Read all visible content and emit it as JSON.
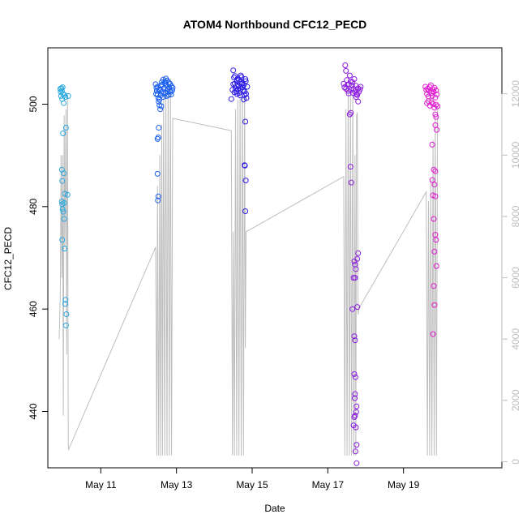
{
  "chart_data": {
    "type": "scatter",
    "title": "ATOM4 Northbound CFC12_PECD",
    "xlabel": "Date",
    "ylabel": "CFC12_PECD",
    "x_unit": "days (May)",
    "xlim": [
      9.6,
      21.6
    ],
    "ylim": [
      429,
      511
    ],
    "y2lim": [
      -200,
      13500
    ],
    "grid": false,
    "x_ticks": [
      {
        "value": 11,
        "label": "May 11"
      },
      {
        "value": 13,
        "label": "May 13"
      },
      {
        "value": 15,
        "label": "May 15"
      },
      {
        "value": 17,
        "label": "May 17"
      },
      {
        "value": 19,
        "label": "May 19"
      }
    ],
    "y_ticks": [
      440,
      460,
      480,
      500
    ],
    "y2_ticks": [
      0,
      2000,
      4000,
      6000,
      8000,
      10000,
      12000
    ],
    "series": [
      {
        "kind": "points",
        "color": "#29a8e0",
        "points": [
          [
            9.93,
            503.0
          ],
          [
            9.94,
            502.4
          ],
          [
            9.95,
            501.6
          ],
          [
            9.96,
            503.1
          ],
          [
            9.97,
            502.6
          ],
          [
            9.98,
            501.0
          ],
          [
            9.99,
            503.3
          ],
          [
            10.0,
            502.0
          ],
          [
            10.02,
            500.2
          ],
          [
            10.04,
            501.8
          ],
          [
            10.06,
            501.4
          ],
          [
            10.14,
            501.6
          ],
          [
            9.97,
            487.2
          ],
          [
            10.02,
            486.5
          ],
          [
            9.98,
            485.0
          ],
          [
            10.05,
            482.5
          ],
          [
            10.12,
            482.3
          ],
          [
            9.97,
            481.0
          ],
          [
            9.98,
            480.5
          ],
          [
            10.03,
            480.7
          ],
          [
            9.99,
            479.5
          ],
          [
            10.01,
            479.0
          ],
          [
            10.03,
            477.6
          ],
          [
            10.08,
            495.4
          ],
          [
            10.0,
            494.3
          ],
          [
            9.98,
            473.5
          ],
          [
            10.04,
            471.8
          ],
          [
            10.07,
            461.8
          ],
          [
            10.06,
            461.0
          ],
          [
            10.09,
            459.0
          ],
          [
            10.08,
            456.8
          ]
        ]
      },
      {
        "kind": "points",
        "color": "#1a5ef0",
        "points": [
          [
            12.45,
            503.9
          ],
          [
            12.47,
            503.2
          ],
          [
            12.48,
            502.6
          ],
          [
            12.5,
            501.9
          ],
          [
            12.52,
            501.2
          ],
          [
            12.53,
            500.5
          ],
          [
            12.55,
            499.8
          ],
          [
            12.57,
            502.8
          ],
          [
            12.59,
            503.6
          ],
          [
            12.61,
            504.3
          ],
          [
            12.63,
            502.5
          ],
          [
            12.65,
            501.4
          ],
          [
            12.67,
            503.1
          ],
          [
            12.69,
            504.1
          ],
          [
            12.71,
            502.2
          ],
          [
            12.73,
            503.7
          ],
          [
            12.75,
            504.6
          ],
          [
            12.77,
            502.9
          ],
          [
            12.79,
            501.8
          ],
          [
            12.81,
            503.3
          ],
          [
            12.83,
            504.0
          ],
          [
            12.85,
            502.4
          ],
          [
            12.87,
            503.5
          ],
          [
            12.89,
            502.7
          ],
          [
            12.46,
            502.0
          ],
          [
            12.5,
            503.4
          ],
          [
            12.54,
            502.9
          ],
          [
            12.58,
            501.7
          ],
          [
            12.62,
            503.8
          ],
          [
            12.66,
            502.1
          ],
          [
            12.7,
            504.4
          ],
          [
            12.74,
            501.6
          ],
          [
            12.78,
            503.0
          ],
          [
            12.82,
            502.6
          ],
          [
            12.86,
            501.9
          ],
          [
            12.9,
            503.2
          ],
          [
            12.55,
            500.9
          ],
          [
            12.6,
            499.6
          ],
          [
            12.57,
            499.0
          ],
          [
            12.65,
            504.8
          ],
          [
            12.72,
            505.0
          ],
          [
            12.8,
            504.2
          ],
          [
            12.53,
            495.4
          ],
          [
            12.5,
            493.2
          ],
          [
            12.52,
            493.5
          ],
          [
            12.5,
            486.4
          ],
          [
            12.52,
            482.0
          ],
          [
            12.51,
            481.2
          ]
        ]
      },
      {
        "kind": "points",
        "color": "#2b1ae8",
        "points": [
          [
            14.48,
            502.8
          ],
          [
            14.5,
            503.9
          ],
          [
            14.52,
            505.2
          ],
          [
            14.54,
            504.0
          ],
          [
            14.56,
            503.1
          ],
          [
            14.58,
            502.5
          ],
          [
            14.6,
            504.6
          ],
          [
            14.62,
            505.0
          ],
          [
            14.64,
            503.5
          ],
          [
            14.66,
            502.2
          ],
          [
            14.68,
            504.3
          ],
          [
            14.7,
            503.0
          ],
          [
            14.72,
            505.3
          ],
          [
            14.74,
            504.1
          ],
          [
            14.76,
            502.7
          ],
          [
            14.78,
            503.8
          ],
          [
            14.8,
            501.8
          ],
          [
            14.82,
            504.9
          ],
          [
            14.84,
            502.0
          ],
          [
            14.5,
            506.6
          ],
          [
            14.55,
            505.5
          ],
          [
            14.6,
            502.0
          ],
          [
            14.65,
            504.8
          ],
          [
            14.7,
            505.6
          ],
          [
            14.75,
            503.3
          ],
          [
            14.8,
            502.5
          ],
          [
            14.85,
            501.2
          ],
          [
            14.45,
            501.0
          ],
          [
            14.58,
            503.6
          ],
          [
            14.68,
            501.7
          ],
          [
            14.78,
            500.9
          ],
          [
            14.83,
            504.5
          ],
          [
            14.62,
            502.9
          ],
          [
            14.72,
            503.9
          ],
          [
            14.53,
            502.3
          ],
          [
            14.87,
            503.4
          ],
          [
            14.82,
            496.6
          ],
          [
            14.8,
            488.1
          ],
          [
            14.81,
            488.0
          ],
          [
            14.83,
            485.1
          ],
          [
            14.82,
            479.1
          ]
        ]
      },
      {
        "kind": "points",
        "color": "#8a1ae0",
        "points": [
          [
            17.42,
            504.0
          ],
          [
            17.44,
            503.3
          ],
          [
            17.46,
            507.6
          ],
          [
            17.48,
            506.5
          ],
          [
            17.5,
            504.7
          ],
          [
            17.52,
            503.8
          ],
          [
            17.54,
            502.6
          ],
          [
            17.56,
            503.9
          ],
          [
            17.58,
            505.6
          ],
          [
            17.6,
            504.4
          ],
          [
            17.62,
            502.8
          ],
          [
            17.64,
            503.7
          ],
          [
            17.66,
            502.2
          ],
          [
            17.68,
            503.0
          ],
          [
            17.7,
            504.9
          ],
          [
            17.72,
            502.5
          ],
          [
            17.74,
            503.6
          ],
          [
            17.76,
            502.0
          ],
          [
            17.78,
            501.8
          ],
          [
            17.8,
            503.1
          ],
          [
            17.82,
            502.4
          ],
          [
            17.48,
            503.0
          ],
          [
            17.55,
            502.1
          ],
          [
            17.65,
            504.3
          ],
          [
            17.75,
            501.4
          ],
          [
            17.85,
            502.9
          ],
          [
            17.87,
            503.4
          ],
          [
            17.8,
            500.5
          ],
          [
            17.61,
            498.3
          ],
          [
            17.58,
            498.0
          ],
          [
            17.6,
            487.8
          ],
          [
            17.62,
            484.7
          ],
          [
            17.8,
            470.9
          ],
          [
            17.78,
            469.8
          ],
          [
            17.7,
            469.3
          ],
          [
            17.72,
            468.7
          ],
          [
            17.74,
            467.8
          ],
          [
            17.68,
            466.1
          ],
          [
            17.72,
            466.1
          ],
          [
            17.78,
            460.4
          ],
          [
            17.65,
            460.0
          ],
          [
            17.7,
            454.7
          ],
          [
            17.72,
            453.9
          ],
          [
            17.7,
            447.3
          ],
          [
            17.73,
            446.7
          ],
          [
            17.72,
            443.4
          ],
          [
            17.71,
            442.6
          ],
          [
            17.76,
            441.0
          ],
          [
            17.75,
            439.9
          ],
          [
            17.72,
            439.2
          ],
          [
            17.7,
            438.9
          ],
          [
            17.68,
            437.3
          ],
          [
            17.74,
            436.9
          ],
          [
            17.76,
            433.5
          ],
          [
            17.73,
            432.2
          ],
          [
            17.76,
            429.9
          ]
        ]
      },
      {
        "kind": "points",
        "color": "#e01ad0",
        "points": [
          [
            19.58,
            503.4
          ],
          [
            19.6,
            502.8
          ],
          [
            19.62,
            502.0
          ],
          [
            19.64,
            503.0
          ],
          [
            19.66,
            501.5
          ],
          [
            19.68,
            502.6
          ],
          [
            19.7,
            503.3
          ],
          [
            19.72,
            503.7
          ],
          [
            19.74,
            502.2
          ],
          [
            19.76,
            501.6
          ],
          [
            19.78,
            502.9
          ],
          [
            19.8,
            502.4
          ],
          [
            19.82,
            503.2
          ],
          [
            19.84,
            501.3
          ],
          [
            19.86,
            502.7
          ],
          [
            19.88,
            501.9
          ],
          [
            19.62,
            500.2
          ],
          [
            19.66,
            500.6
          ],
          [
            19.7,
            499.7
          ],
          [
            19.74,
            500.4
          ],
          [
            19.78,
            500.0
          ],
          [
            19.82,
            499.3
          ],
          [
            19.86,
            499.9
          ],
          [
            19.9,
            499.6
          ],
          [
            19.84,
            498.0
          ],
          [
            19.86,
            497.5
          ],
          [
            19.84,
            495.9
          ],
          [
            19.88,
            495.0
          ],
          [
            19.76,
            492.1
          ],
          [
            19.8,
            487.2
          ],
          [
            19.84,
            486.9
          ],
          [
            19.76,
            485.2
          ],
          [
            19.82,
            484.3
          ],
          [
            19.78,
            482.2
          ],
          [
            19.84,
            482.0
          ],
          [
            19.8,
            477.6
          ],
          [
            19.84,
            474.5
          ],
          [
            19.86,
            473.5
          ],
          [
            19.82,
            471.2
          ],
          [
            19.87,
            468.4
          ],
          [
            19.8,
            464.5
          ],
          [
            19.82,
            460.8
          ],
          [
            19.78,
            455.1
          ]
        ]
      },
      {
        "kind": "line",
        "axis": "right",
        "color": "#bebebe",
        "points": [
          [
            9.9,
            4000
          ],
          [
            9.93,
            5500
          ],
          [
            9.95,
            10000
          ],
          [
            9.97,
            6000
          ],
          [
            9.99,
            10000
          ],
          [
            10.01,
            1500
          ],
          [
            10.03,
            11300
          ],
          [
            10.05,
            7000
          ],
          [
            10.08,
            11500
          ],
          [
            10.1,
            3500
          ],
          [
            10.12,
            12000
          ],
          [
            10.14,
            500
          ],
          [
            10.15,
            400
          ],
          [
            12.45,
            7000
          ],
          [
            12.48,
            200
          ],
          [
            12.5,
            9000
          ],
          [
            12.53,
            200
          ],
          [
            12.56,
            10000
          ],
          [
            12.58,
            200
          ],
          [
            12.61,
            11000
          ],
          [
            12.63,
            200
          ],
          [
            12.66,
            12000
          ],
          [
            12.69,
            200
          ],
          [
            12.72,
            12200
          ],
          [
            12.75,
            200
          ],
          [
            12.78,
            12400
          ],
          [
            12.81,
            200
          ],
          [
            12.84,
            12500
          ],
          [
            12.87,
            200
          ],
          [
            12.9,
            11200
          ],
          [
            14.45,
            10800
          ],
          [
            14.48,
            200
          ],
          [
            14.5,
            7500
          ],
          [
            14.53,
            200
          ],
          [
            14.56,
            11500
          ],
          [
            14.59,
            200
          ],
          [
            14.62,
            11800
          ],
          [
            14.65,
            200
          ],
          [
            14.68,
            12300
          ],
          [
            14.71,
            200
          ],
          [
            14.74,
            12500
          ],
          [
            14.77,
            200
          ],
          [
            14.8,
            12400
          ],
          [
            14.82,
            3700
          ],
          [
            14.84,
            7500
          ],
          [
            17.42,
            9300
          ],
          [
            17.45,
            200
          ],
          [
            17.48,
            11500
          ],
          [
            17.51,
            200
          ],
          [
            17.54,
            12300
          ],
          [
            17.57,
            200
          ],
          [
            17.6,
            12000
          ],
          [
            17.63,
            200
          ],
          [
            17.66,
            12200
          ],
          [
            17.69,
            200
          ],
          [
            17.72,
            10000
          ],
          [
            17.74,
            200
          ],
          [
            17.76,
            11300
          ],
          [
            17.78,
            11400
          ],
          [
            17.8,
            4800
          ],
          [
            17.82,
            5000
          ],
          [
            19.6,
            8800
          ],
          [
            19.63,
            200
          ],
          [
            19.66,
            8500
          ],
          [
            19.69,
            200
          ],
          [
            19.72,
            9200
          ],
          [
            19.75,
            200
          ],
          [
            19.78,
            10500
          ],
          [
            19.81,
            200
          ],
          [
            19.84,
            11300
          ],
          [
            19.87,
            200
          ],
          [
            19.9,
            11600
          ]
        ]
      }
    ]
  }
}
